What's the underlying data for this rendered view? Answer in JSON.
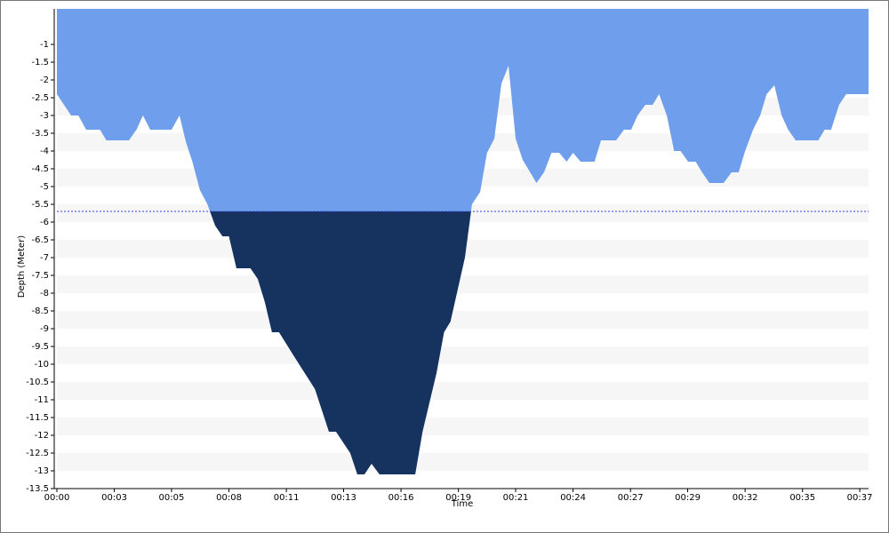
{
  "chart_data": {
    "type": "area",
    "y_label": "Depth (Meter)",
    "x_label": "Time",
    "x": [
      0,
      0.66,
      1.0,
      1.36,
      2.0,
      2.3,
      3.35,
      3.7,
      4.0,
      4.34,
      5.33,
      5.7,
      6.0,
      6.3,
      6.65,
      7.0,
      7.36,
      7.7,
      8.0,
      8.35,
      9.0,
      9.34,
      9.67,
      10.0,
      10.33,
      11.0,
      12.0,
      12.65,
      12.98,
      13.64,
      13.97,
      14.3,
      14.63,
      15.0,
      16.66,
      17.0,
      17.65,
      18.0,
      18.3,
      18.97,
      19.3,
      19.68,
      20.0,
      20.34,
      20.67,
      21.0,
      21.33,
      21.66,
      22.3,
      22.65,
      23.0,
      23.36,
      23.7,
      24.0,
      24.35,
      25.0,
      25.3,
      26.0,
      26.37,
      26.7,
      27.0,
      27.36,
      27.7,
      28.0,
      28.36,
      28.7,
      29.0,
      29.35,
      29.7,
      30.0,
      30.34,
      31.0,
      31.37,
      31.7,
      32.0,
      32.37,
      32.7,
      33.0,
      33.36,
      33.7,
      34.0,
      34.35,
      35.4,
      35.7,
      36.0,
      36.37,
      36.7,
      37.74
    ],
    "values": [
      -2.4,
      -3.0,
      -3.0,
      -3.4,
      -3.4,
      -3.7,
      -3.7,
      -3.4,
      -3.0,
      -3.4,
      -3.4,
      -3.0,
      -3.75,
      -4.3,
      -5.1,
      -5.5,
      -6.1,
      -6.4,
      -6.4,
      -7.3,
      -7.3,
      -7.6,
      -8.25,
      -9.1,
      -9.1,
      -9.75,
      -10.7,
      -11.9,
      -11.9,
      -12.5,
      -13.1,
      -13.1,
      -12.8,
      -13.1,
      -13.1,
      -11.9,
      -10.25,
      -9.1,
      -8.8,
      -7.0,
      -5.5,
      -5.15,
      -4.05,
      -3.65,
      -2.1,
      -1.6,
      -3.65,
      -4.25,
      -4.9,
      -4.6,
      -4.05,
      -4.05,
      -4.3,
      -4.05,
      -4.3,
      -4.3,
      -3.7,
      -3.7,
      -3.4,
      -3.4,
      -3.0,
      -2.7,
      -2.7,
      -2.4,
      -3.0,
      -4.0,
      -4.0,
      -4.3,
      -4.3,
      -4.6,
      -4.9,
      -4.9,
      -4.6,
      -4.6,
      -4.0,
      -3.4,
      -3.0,
      -2.4,
      -2.15,
      -3.0,
      -3.4,
      -3.7,
      -3.7,
      -3.4,
      -3.4,
      -2.7,
      -2.4,
      -2.4
    ],
    "color": "#6f9fec",
    "deep_color": "#163360",
    "threshold": -5.7,
    "threshold_color": "#2a3fd6",
    "xlim": [
      0,
      37.74
    ],
    "ylim": [
      -13.5,
      0
    ],
    "xticks": [
      {
        "value": 0,
        "label": "00:00"
      },
      {
        "value": 2.67,
        "label": "00:03"
      },
      {
        "value": 5.33,
        "label": "00:05"
      },
      {
        "value": 8,
        "label": "00:08"
      },
      {
        "value": 10.67,
        "label": "00:11"
      },
      {
        "value": 13.33,
        "label": "00:13"
      },
      {
        "value": 16,
        "label": "00:16"
      },
      {
        "value": 18.67,
        "label": "00:19"
      },
      {
        "value": 21.33,
        "label": "00:21"
      },
      {
        "value": 24,
        "label": "00:24"
      },
      {
        "value": 26.67,
        "label": "00:27"
      },
      {
        "value": 29.33,
        "label": "00:29"
      },
      {
        "value": 32,
        "label": "00:32"
      },
      {
        "value": 34.67,
        "label": "00:35"
      },
      {
        "value": 37.33,
        "label": "00:37"
      }
    ],
    "yticks": [
      -1,
      -1.5,
      -2,
      -2.5,
      -3,
      -3.5,
      -4,
      -4.5,
      -5,
      -5.5,
      -6,
      -6.5,
      -7,
      -7.5,
      -8,
      -8.5,
      -9,
      -9.5,
      -10,
      -10.5,
      -11,
      -11.5,
      -12,
      -12.5,
      -13,
      -13.5
    ],
    "stripes": true
  }
}
